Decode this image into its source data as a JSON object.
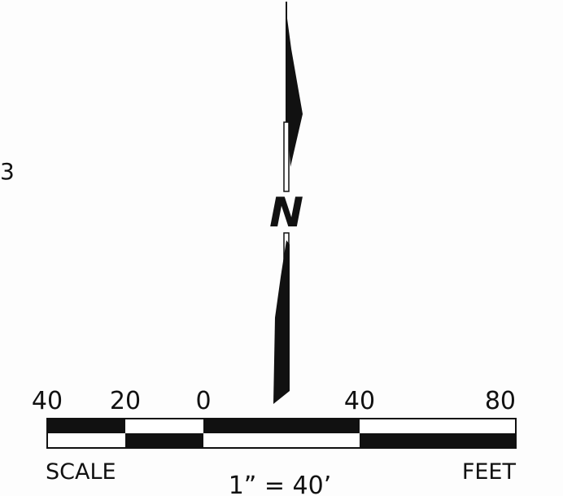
{
  "margin_text": "3",
  "north_arrow": {
    "label": "N"
  },
  "scale_bar": {
    "ticks": [
      "40",
      "20",
      "0",
      "40",
      "80"
    ],
    "label": "SCALE",
    "ratio": "1” = 40’",
    "unit": "FEET"
  }
}
